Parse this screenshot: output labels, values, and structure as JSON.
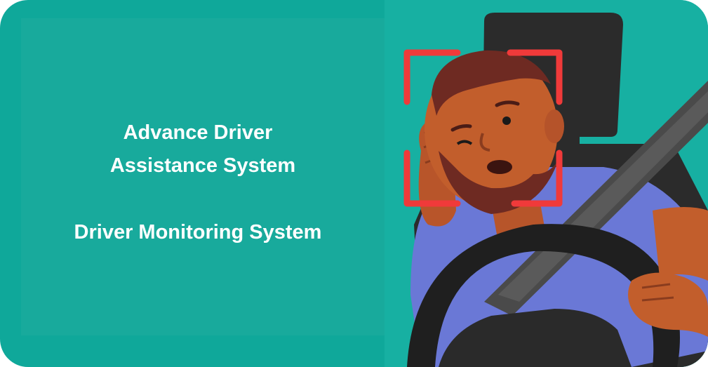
{
  "heading": {
    "line1": "Advance Driver",
    "line2": "Assistance System",
    "line3": "Driver Monitoring System"
  },
  "colors": {
    "background": "#0fa89a",
    "panel": "#18aa9c",
    "text": "#ffffff",
    "frame": "#f03a3a",
    "shirt": "#6a78d6",
    "skin": "#c25e2c",
    "beard": "#6e2a22",
    "wheel": "#1f1f1f",
    "seat": "#2b2b2b"
  },
  "illustration": {
    "subject": "drowsy driver at steering wheel",
    "icons": [
      "face-detection-frame-icon",
      "steering-wheel-icon",
      "seatbelt-icon"
    ]
  }
}
